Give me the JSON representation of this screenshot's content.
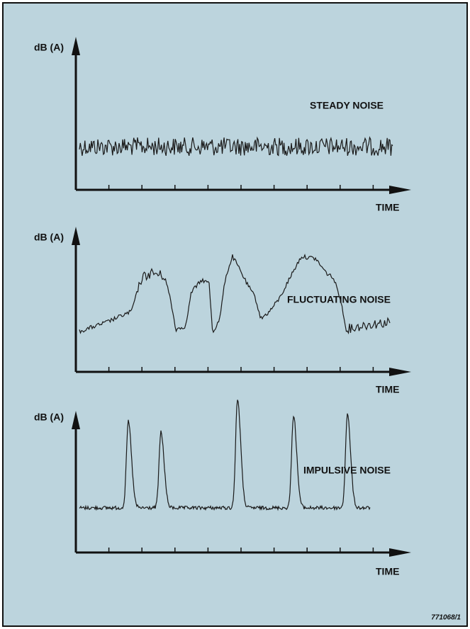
{
  "panels": [
    {
      "y_label": "dB (A)",
      "label": "STEADY NOISE",
      "x_label": "TIME"
    },
    {
      "y_label": "dB (A)",
      "label": "FLUCTUATING NOISE",
      "x_label": "TIME"
    },
    {
      "y_label": "dB (A)",
      "label": "IMPULSIVE NOISE",
      "x_label": "TIME"
    }
  ],
  "figure_code": "771068/1"
}
